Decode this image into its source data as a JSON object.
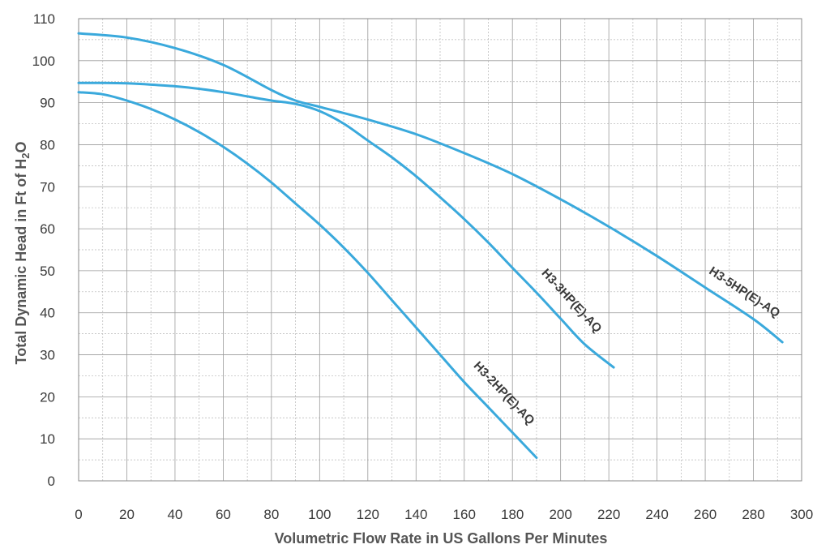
{
  "chart_data": {
    "type": "line",
    "xlabel": "Volumetric Flow Rate in US Gallons Per Minutes",
    "ylabel": "Total Dynamic Head in Ft of H2O",
    "xlim": [
      0,
      300
    ],
    "ylim": [
      0,
      110
    ],
    "x_ticks": [
      0,
      20,
      40,
      60,
      80,
      100,
      120,
      140,
      160,
      180,
      200,
      220,
      240,
      260,
      280,
      300
    ],
    "y_ticks": [
      0,
      10,
      20,
      30,
      40,
      50,
      60,
      70,
      80,
      90,
      100,
      110
    ],
    "grid": true,
    "line_color": "#3aa9dc",
    "series": [
      {
        "name": "H3-2HP(E)-AQ",
        "x": [
          0,
          10,
          20,
          30,
          40,
          50,
          60,
          70,
          80,
          90,
          100,
          110,
          120,
          130,
          140,
          150,
          160,
          170,
          180,
          190
        ],
        "y": [
          92.5,
          92,
          90.5,
          88.5,
          86,
          83,
          79.5,
          75.5,
          71,
          66,
          61,
          55.5,
          49.5,
          43,
          36.5,
          30,
          23.5,
          17.5,
          11.5,
          5.5
        ]
      },
      {
        "name": "H3-3HP(E)-AQ",
        "x": [
          0,
          10,
          20,
          30,
          40,
          50,
          60,
          70,
          80,
          90,
          100,
          110,
          120,
          130,
          140,
          150,
          160,
          170,
          180,
          190,
          200,
          210,
          222
        ],
        "y": [
          94.7,
          94.7,
          94.6,
          94.3,
          93.9,
          93.3,
          92.5,
          91.5,
          90.5,
          89.7,
          88,
          85,
          81,
          77,
          72.5,
          67.5,
          62.3,
          56.7,
          50.7,
          44.8,
          38.6,
          32.5,
          27
        ]
      },
      {
        "name": "H3-5HP(E)-AQ",
        "x": [
          0,
          20,
          40,
          60,
          80,
          90,
          100,
          120,
          140,
          160,
          180,
          200,
          220,
          240,
          260,
          280,
          292
        ],
        "y": [
          106.5,
          105.5,
          103,
          99,
          93,
          90.5,
          89,
          86,
          82.5,
          78,
          73,
          67,
          60.5,
          53.5,
          46,
          38.5,
          33
        ]
      }
    ]
  }
}
